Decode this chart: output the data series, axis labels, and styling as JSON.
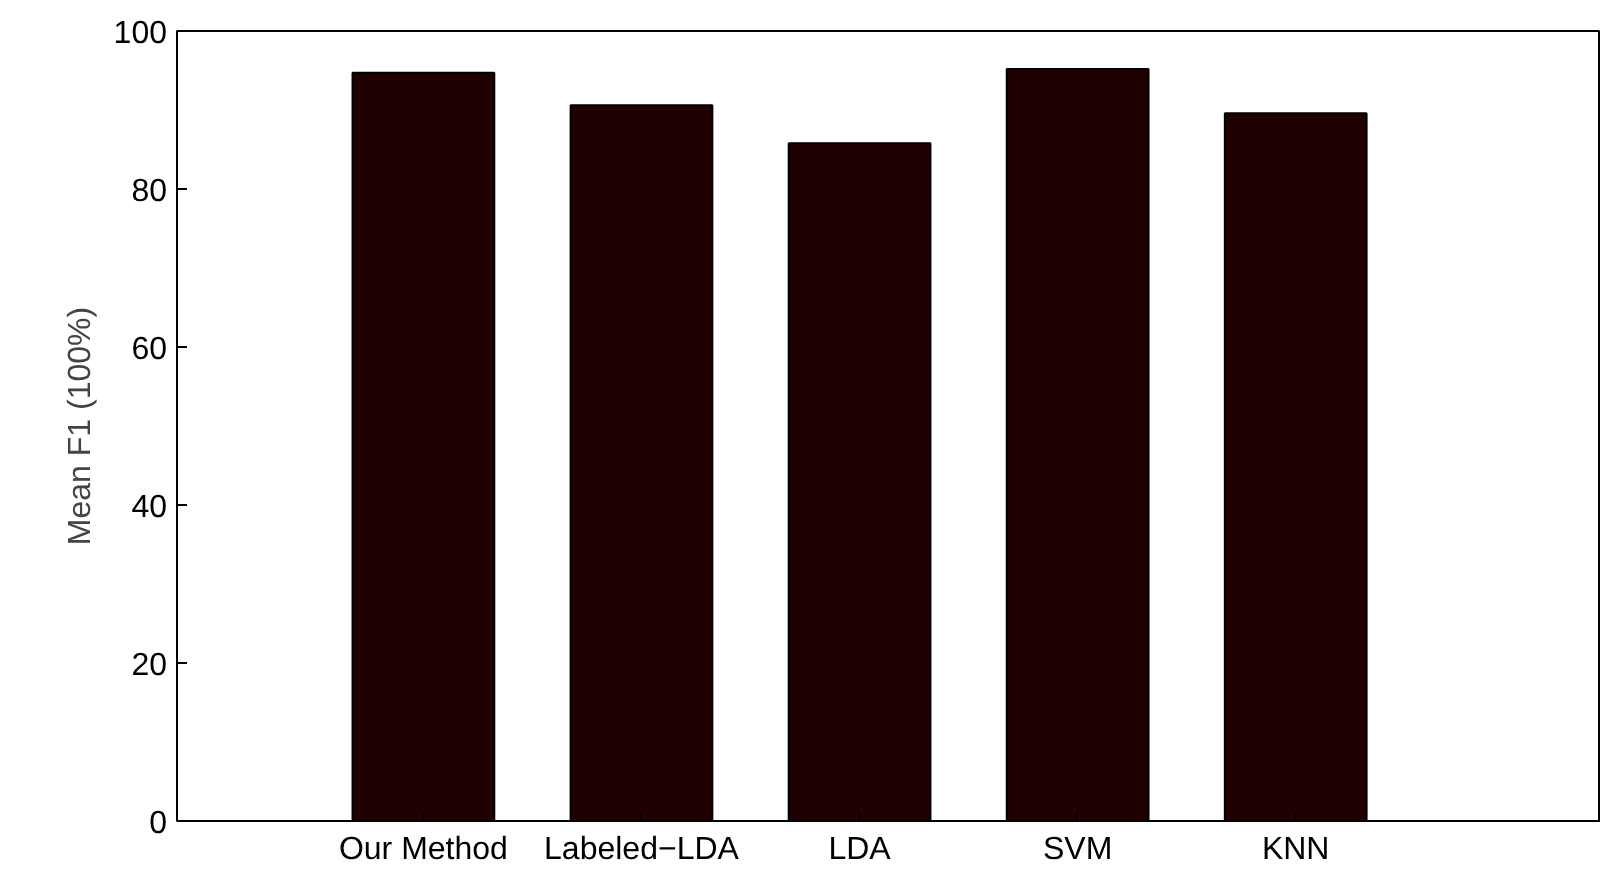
{
  "chart_data": {
    "type": "bar",
    "ylabel": "Mean F1 (100%)",
    "categories": [
      "Our Method",
      "Labeled−LDA",
      "LDA",
      "SVM",
      "KNN"
    ],
    "values": [
      94.7,
      90.6,
      85.8,
      95.2,
      89.6
    ],
    "color": "#200000",
    "ylim": [
      0,
      100
    ],
    "yticks": [
      0,
      20,
      40,
      60,
      80,
      100
    ],
    "grid": false
  }
}
